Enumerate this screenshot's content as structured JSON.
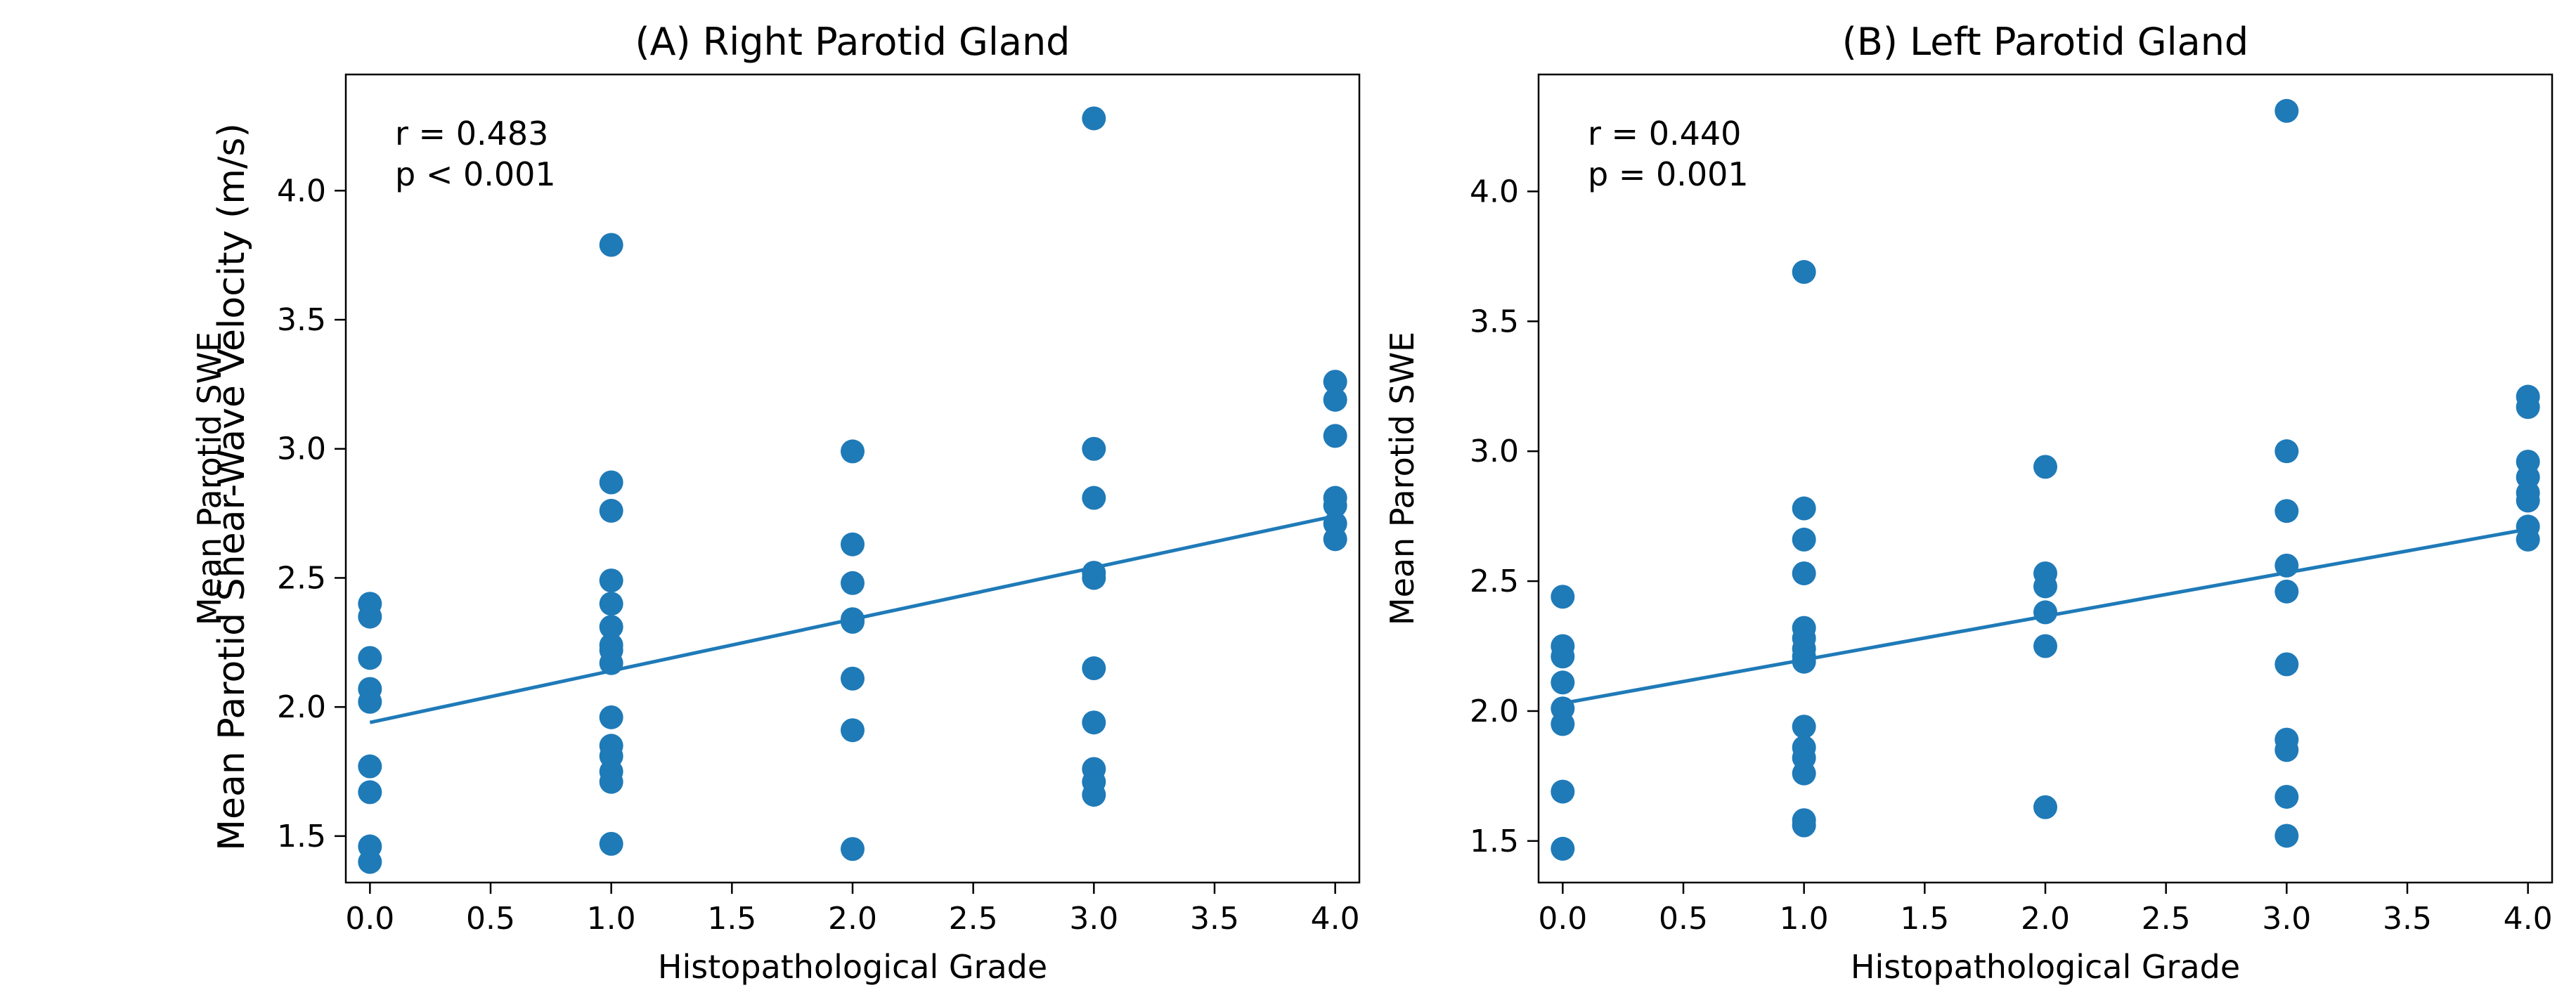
{
  "figure": {
    "shared_ylabel": "Mean Parotid Shear-Wave Velocity (m/s)"
  },
  "colors": {
    "marker": "#1f7ab8",
    "line": "#1f7ab8",
    "axes": "#000000"
  },
  "chart_data": [
    {
      "type": "scatter",
      "title": "(A) Right Parotid Gland",
      "xlabel": "Histopathological Grade",
      "ylabel": "Mean Parotid SWE",
      "xlim": [
        -0.1,
        4.1
      ],
      "ylim": [
        1.32,
        4.45
      ],
      "xticks": [
        0.0,
        0.5,
        1.0,
        1.5,
        2.0,
        2.5,
        3.0,
        3.5,
        4.0
      ],
      "xtick_labels": [
        "0.0",
        "0.5",
        "1.0",
        "1.5",
        "2.0",
        "2.5",
        "3.0",
        "3.5",
        "4.0"
      ],
      "yticks": [
        1.5,
        2.0,
        2.5,
        3.0,
        3.5,
        4.0
      ],
      "ytick_labels": [
        "1.5",
        "2.0",
        "2.5",
        "3.0",
        "3.5",
        "4.0"
      ],
      "annotation": [
        "r = 0.483",
        "p < 0.001"
      ],
      "points": [
        [
          0,
          2.4
        ],
        [
          0,
          2.35
        ],
        [
          0,
          2.19
        ],
        [
          0,
          2.07
        ],
        [
          0,
          2.02
        ],
        [
          0,
          1.77
        ],
        [
          0,
          1.67
        ],
        [
          0,
          1.46
        ],
        [
          0,
          1.4
        ],
        [
          1,
          3.79
        ],
        [
          1,
          2.87
        ],
        [
          1,
          2.76
        ],
        [
          1,
          2.49
        ],
        [
          1,
          2.4
        ],
        [
          1,
          2.31
        ],
        [
          1,
          2.24
        ],
        [
          1,
          2.22
        ],
        [
          1,
          2.17
        ],
        [
          1,
          1.96
        ],
        [
          1,
          1.85
        ],
        [
          1,
          1.81
        ],
        [
          1,
          1.75
        ],
        [
          1,
          1.71
        ],
        [
          1,
          1.47
        ],
        [
          2,
          2.99
        ],
        [
          2,
          2.63
        ],
        [
          2,
          2.48
        ],
        [
          2,
          2.34
        ],
        [
          2,
          2.33
        ],
        [
          2,
          2.11
        ],
        [
          2,
          1.91
        ],
        [
          2,
          1.45
        ],
        [
          3,
          4.28
        ],
        [
          3,
          3.0
        ],
        [
          3,
          2.81
        ],
        [
          3,
          2.52
        ],
        [
          3,
          2.5
        ],
        [
          3,
          2.15
        ],
        [
          3,
          1.94
        ],
        [
          3,
          1.76
        ],
        [
          3,
          1.71
        ],
        [
          3,
          1.66
        ],
        [
          4,
          3.26
        ],
        [
          4,
          3.19
        ],
        [
          4,
          3.05
        ],
        [
          4,
          2.81
        ],
        [
          4,
          2.78
        ],
        [
          4,
          2.71
        ],
        [
          4,
          2.65
        ]
      ],
      "fit_line": {
        "x": [
          0,
          4
        ],
        "y": [
          1.94,
          2.74
        ]
      }
    },
    {
      "type": "scatter",
      "title": "(B) Left Parotid Gland",
      "xlabel": "Histopathological Grade",
      "ylabel": "Mean Parotid SWE",
      "xlim": [
        -0.1,
        4.1
      ],
      "ylim": [
        1.34,
        4.45
      ],
      "xticks": [
        0.0,
        0.5,
        1.0,
        1.5,
        2.0,
        2.5,
        3.0,
        3.5,
        4.0
      ],
      "xtick_labels": [
        "0.0",
        "0.5",
        "1.0",
        "1.5",
        "2.0",
        "2.5",
        "3.0",
        "3.5",
        "4.0"
      ],
      "yticks": [
        1.5,
        2.0,
        2.5,
        3.0,
        3.5,
        4.0
      ],
      "ytick_labels": [
        "1.5",
        "2.0",
        "2.5",
        "3.0",
        "3.5",
        "4.0"
      ],
      "annotation": [
        "r = 0.440",
        "p = 0.001"
      ],
      "points": [
        [
          0,
          2.44
        ],
        [
          0,
          2.25
        ],
        [
          0,
          2.21
        ],
        [
          0,
          2.11
        ],
        [
          0,
          2.01
        ],
        [
          0,
          1.95
        ],
        [
          0,
          1.69
        ],
        [
          0,
          1.47
        ],
        [
          1,
          3.69
        ],
        [
          1,
          2.78
        ],
        [
          1,
          2.66
        ],
        [
          1,
          2.53
        ],
        [
          1,
          2.32
        ],
        [
          1,
          2.28
        ],
        [
          1,
          2.24
        ],
        [
          1,
          2.21
        ],
        [
          1,
          2.19
        ],
        [
          1,
          1.94
        ],
        [
          1,
          1.86
        ],
        [
          1,
          1.82
        ],
        [
          1,
          1.76
        ],
        [
          1,
          1.58
        ],
        [
          1,
          1.56
        ],
        [
          2,
          2.94
        ],
        [
          2,
          2.53
        ],
        [
          2,
          2.48
        ],
        [
          2,
          2.38
        ],
        [
          2,
          2.25
        ],
        [
          2,
          1.63
        ],
        [
          3,
          4.31
        ],
        [
          3,
          3.0
        ],
        [
          3,
          2.77
        ],
        [
          3,
          2.56
        ],
        [
          3,
          2.46
        ],
        [
          3,
          2.18
        ],
        [
          3,
          1.89
        ],
        [
          3,
          1.85
        ],
        [
          3,
          1.67
        ],
        [
          3,
          1.52
        ],
        [
          4,
          3.21
        ],
        [
          4,
          3.17
        ],
        [
          4,
          2.96
        ],
        [
          4,
          2.9
        ],
        [
          4,
          2.84
        ],
        [
          4,
          2.81
        ],
        [
          4,
          2.71
        ],
        [
          4,
          2.66
        ]
      ],
      "fit_line": {
        "x": [
          0,
          4
        ],
        "y": [
          2.03,
          2.7
        ]
      }
    }
  ]
}
